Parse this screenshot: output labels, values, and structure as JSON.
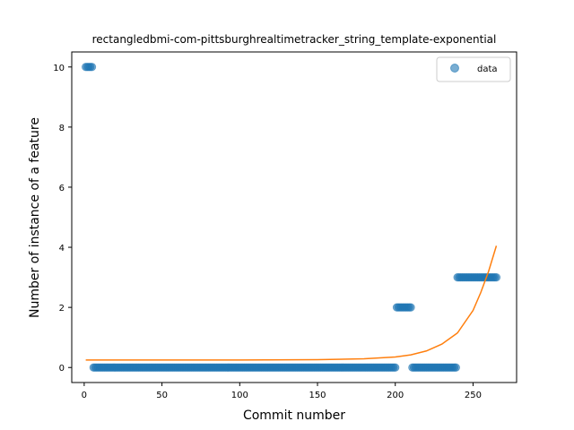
{
  "chart_data": {
    "type": "scatter",
    "title": "rectangledbmi-com-pittsburghrealtimetracker_string_template-exponential",
    "xlabel": "Commit number",
    "ylabel": "Number of instance of a feature",
    "xlim": [
      -8,
      278
    ],
    "ylim": [
      -0.5,
      10.5
    ],
    "xticks": [
      0,
      50,
      100,
      150,
      200,
      250
    ],
    "yticks": [
      0,
      2,
      4,
      6,
      8,
      10
    ],
    "legend": {
      "placement": "top-right",
      "entries": [
        "data"
      ]
    },
    "colors": {
      "data": "#1f77b4",
      "fit": "#ff7f0e"
    },
    "series": [
      {
        "name": "data",
        "kind": "scatter",
        "segments": [
          {
            "x_start": 1,
            "x_end": 5,
            "y": 10
          },
          {
            "x_start": 6,
            "x_end": 200,
            "y": 0
          },
          {
            "x_start": 201,
            "x_end": 210,
            "y": 2
          },
          {
            "x_start": 211,
            "x_end": 239,
            "y": 0
          },
          {
            "x_start": 240,
            "x_end": 265,
            "y": 3
          }
        ]
      },
      {
        "kind": "line",
        "x": [
          1,
          50,
          100,
          150,
          180,
          200,
          210,
          220,
          230,
          240,
          250,
          255,
          260,
          265
        ],
        "y": [
          0.25,
          0.25,
          0.25,
          0.26,
          0.29,
          0.35,
          0.42,
          0.55,
          0.78,
          1.15,
          1.9,
          2.5,
          3.2,
          4.05
        ]
      }
    ]
  }
}
